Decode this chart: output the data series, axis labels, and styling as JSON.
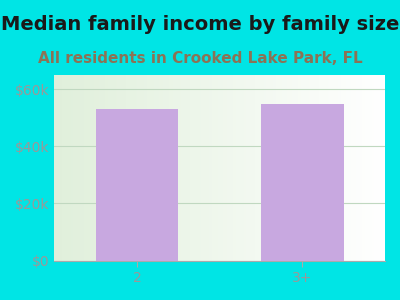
{
  "title": "Median family income by family size",
  "subtitle": "All residents in Crooked Lake Park, FL",
  "categories": [
    "2",
    "3+"
  ],
  "values": [
    53000,
    55000
  ],
  "bar_color": "#c8a8e0",
  "bg_color": "#00e5e5",
  "title_color": "#1a1a1a",
  "subtitle_color": "#8b7355",
  "tick_color": "#999999",
  "ytick_labels": [
    "$0",
    "$20k",
    "$40k",
    "$60k"
  ],
  "ytick_values": [
    0,
    20000,
    40000,
    60000
  ],
  "ylim": [
    0,
    65000
  ],
  "title_fontsize": 14,
  "subtitle_fontsize": 11,
  "tick_fontsize": 10
}
